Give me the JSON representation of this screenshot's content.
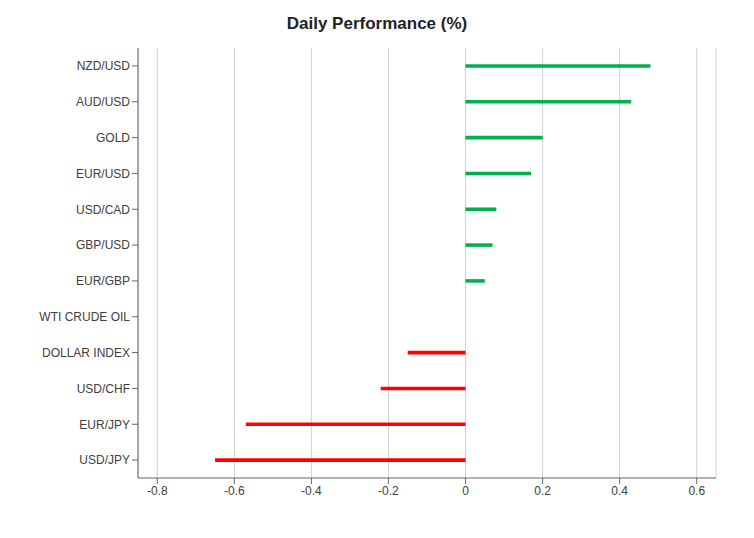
{
  "chart_data": {
    "type": "bar",
    "orientation": "horizontal",
    "title": "Daily Performance (%)",
    "categories": [
      "USD/JPY",
      "EUR/JPY",
      "USD/CHF",
      "DOLLAR INDEX",
      "WTI CRUDE OIL",
      "EUR/GBP",
      "GBP/USD",
      "USD/CAD",
      "EUR/USD",
      "GOLD",
      "AUD/USD",
      "NZD/USD"
    ],
    "values": [
      -0.65,
      -0.57,
      -0.22,
      -0.15,
      0.0,
      0.05,
      0.07,
      0.08,
      0.17,
      0.2,
      0.43,
      0.48
    ],
    "colors": [
      "#ff0000",
      "#ff0000",
      "#ff0000",
      "#ff0000",
      "#ffffff",
      "#00b050",
      "#00b050",
      "#00b050",
      "#00b050",
      "#00b050",
      "#00b050",
      "#00b050"
    ],
    "xlim": [
      -0.85,
      0.65
    ],
    "xticks": [
      -0.8,
      -0.6,
      -0.4,
      -0.2,
      0,
      0.2,
      0.4,
      0.6
    ],
    "grid": true
  }
}
